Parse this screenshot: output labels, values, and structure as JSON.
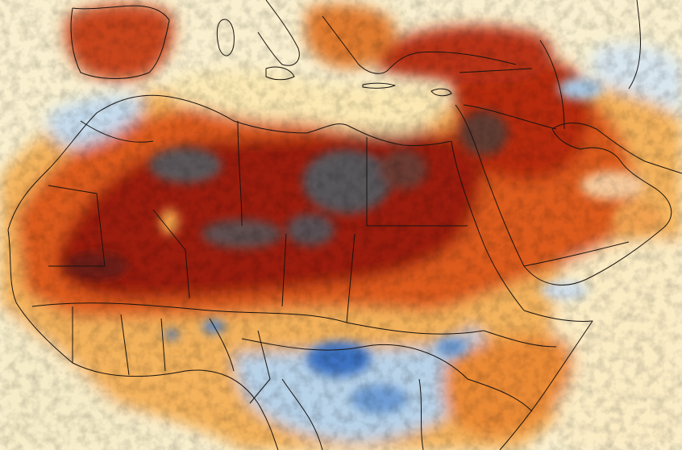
{
  "map": {
    "palette": {
      "ocean": "#faf0cf",
      "land_warm": "#f3a24a",
      "hot": "#d4481a",
      "very_hot": "#8f160c",
      "extreme": "#555457",
      "cool": "#a9cbe6",
      "cold": "#2f66b8",
      "border": "#1a1410"
    }
  }
}
